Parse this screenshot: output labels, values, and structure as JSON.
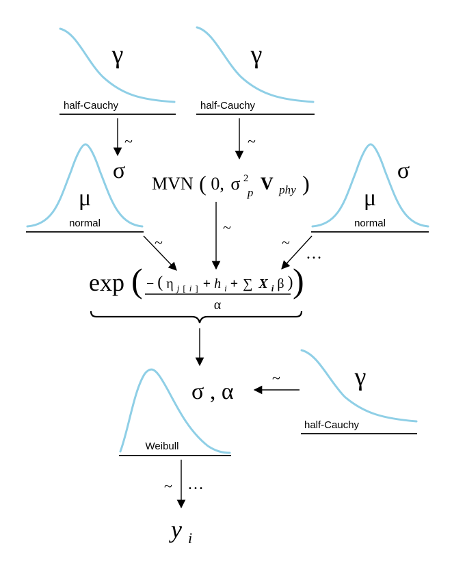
{
  "priors": {
    "top_left": {
      "symbol": "γ",
      "dist": "half-Cauchy"
    },
    "top_mid": {
      "symbol": "γ",
      "dist": "half-Cauchy"
    },
    "normal_left": {
      "mean": "μ",
      "sd": "σ",
      "dist": "normal"
    },
    "normal_right": {
      "mean": "μ",
      "sd": "σ",
      "dist": "normal"
    },
    "bottom_right": {
      "symbol": "γ",
      "dist": "half-Cauchy"
    },
    "weibull": {
      "dist": "Weibull"
    }
  },
  "tildes": {
    "symbol": "~",
    "ellipsis": "…"
  },
  "mvn": {
    "name": "MVN",
    "zero": "0,",
    "sigma": "σ",
    "sigma_exp": "2",
    "sigma_sub": "p",
    "matrix": "V",
    "matrix_sub": "phy"
  },
  "linear_predictor": {
    "exp": "exp",
    "minus": "−",
    "eta": "η",
    "eta_sub_j": "j",
    "eta_sub_i": "i",
    "plus": "+",
    "h": "h",
    "h_sub": "i",
    "sum": "∑",
    "x": "X",
    "x_sub": "i",
    "beta": "β",
    "denominator": "α"
  },
  "weibull_params": "σ , α",
  "response": {
    "y": "y",
    "sub": "i"
  }
}
